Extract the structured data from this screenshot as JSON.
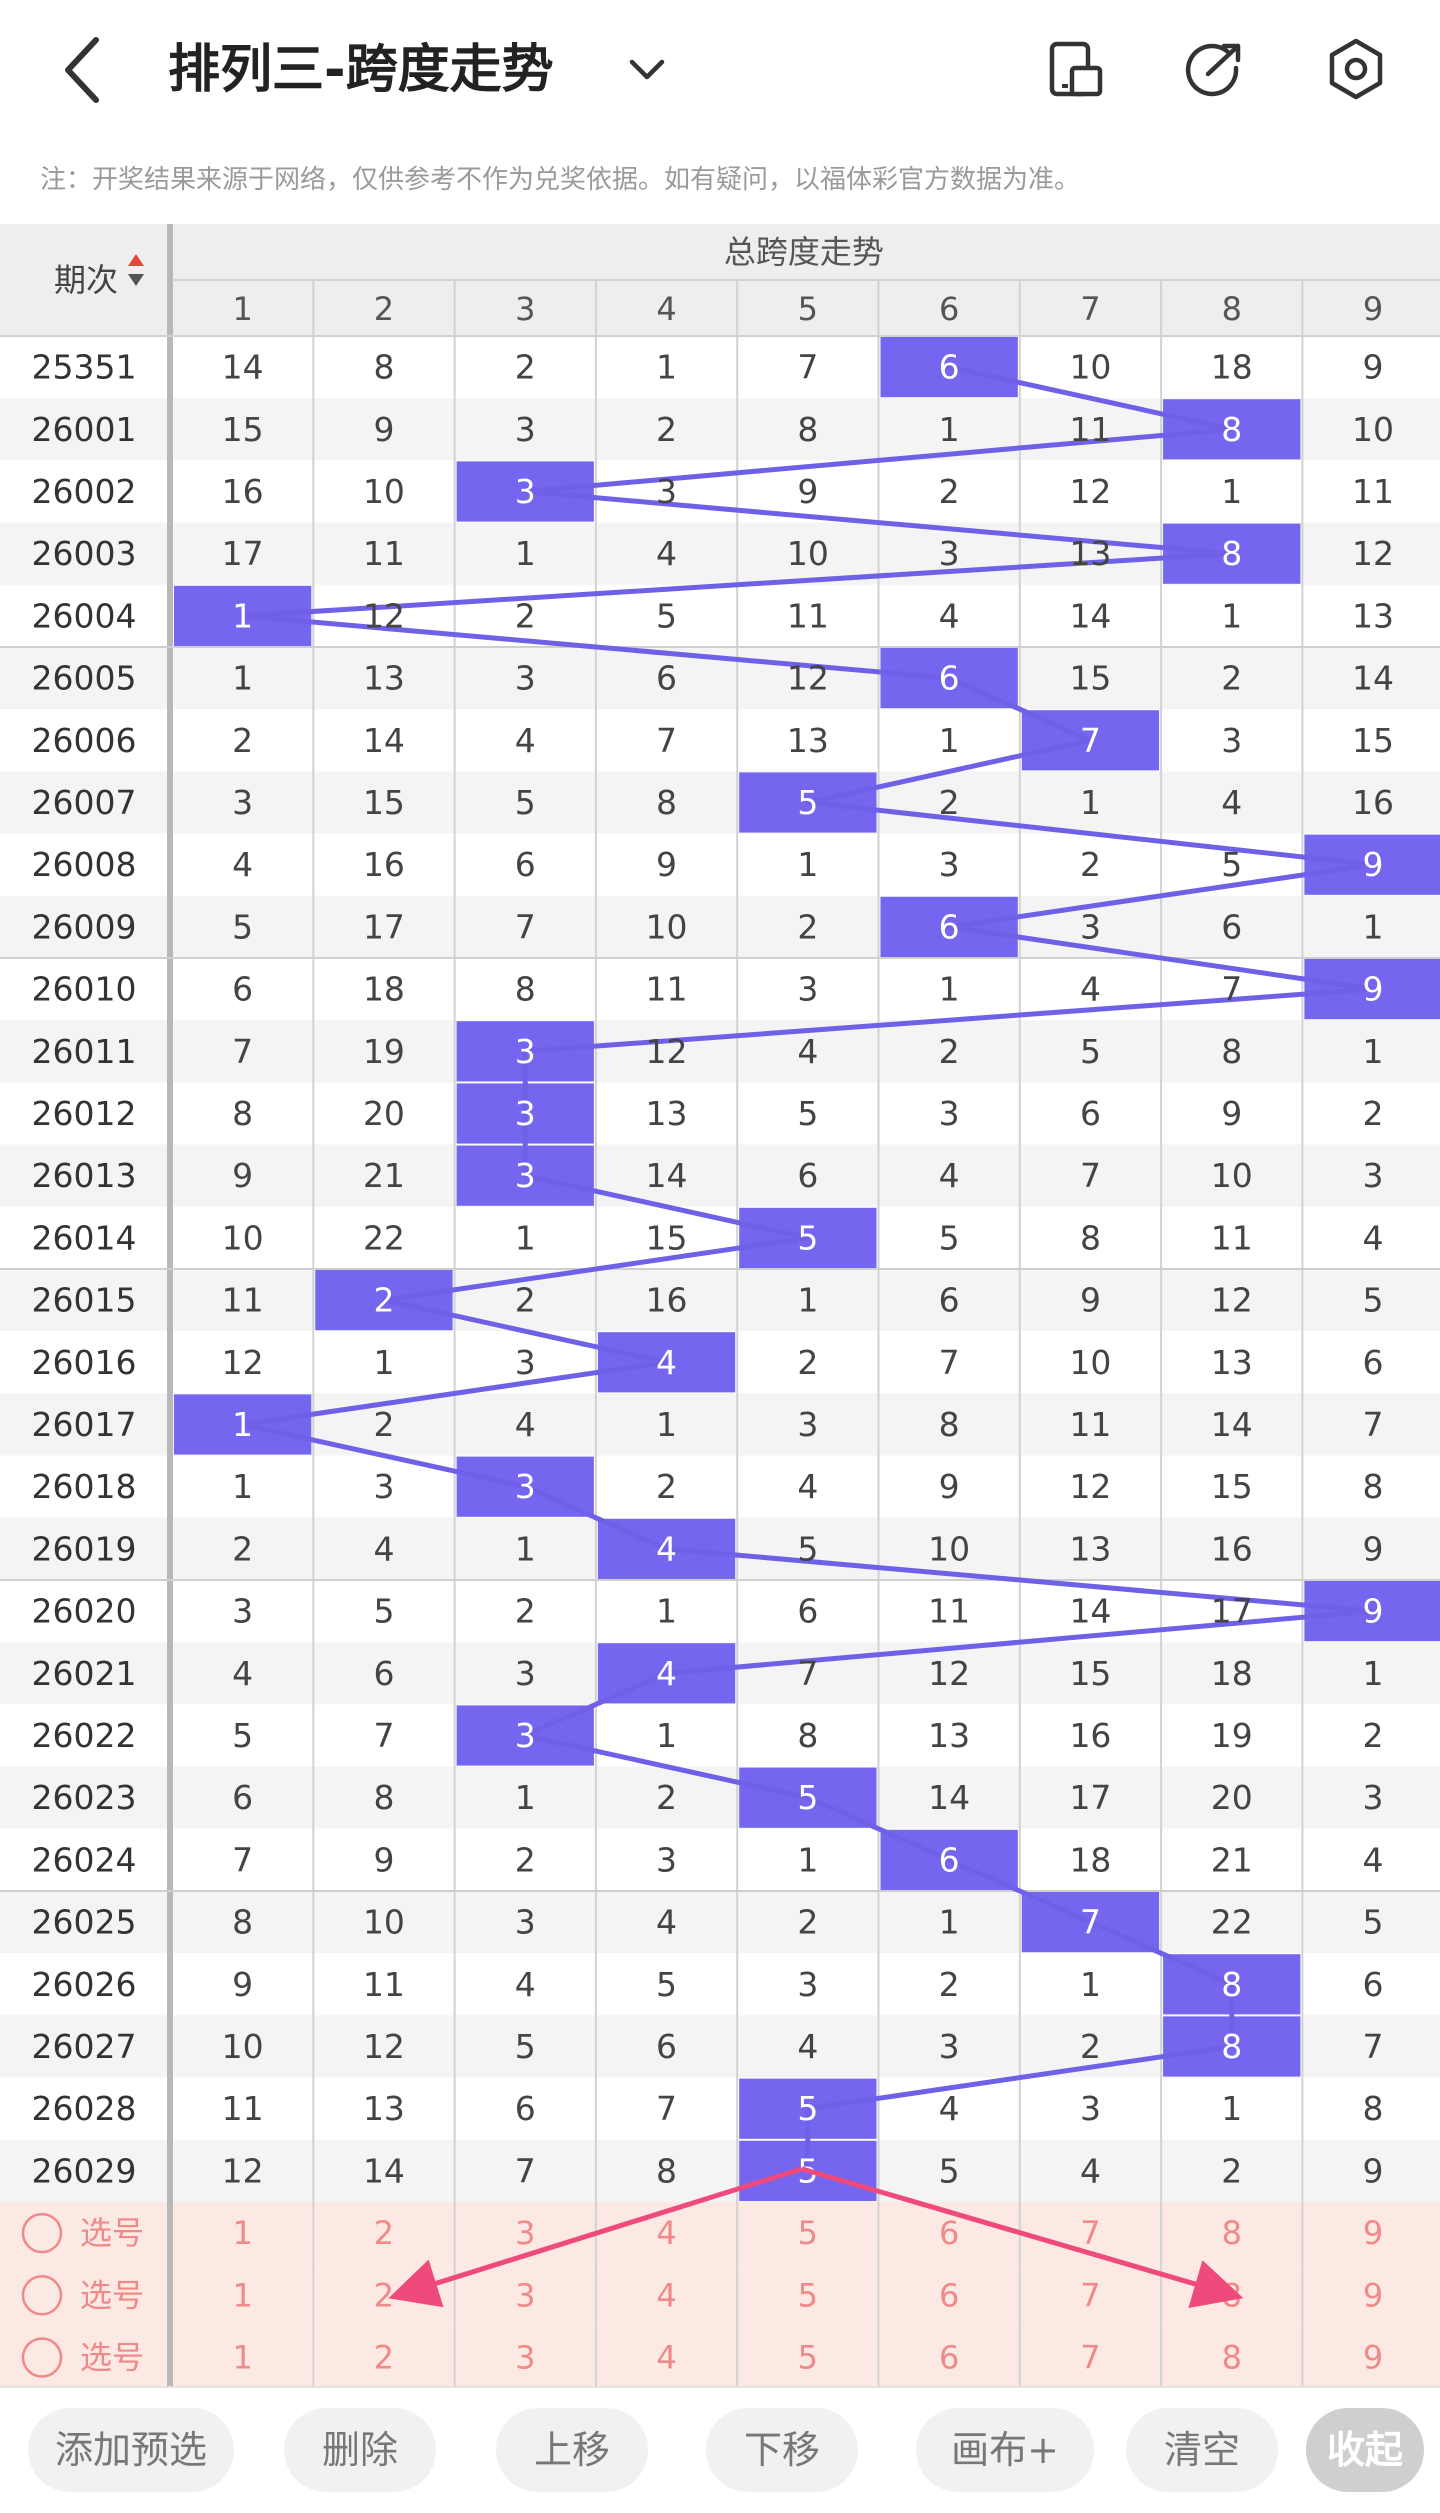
{
  "header": {
    "title": "排列三-跨度走势",
    "back_icon": "chevron-left-icon",
    "dropdown_icon": "chevron-down-icon",
    "actions": [
      {
        "name": "layout-toggle-icon"
      },
      {
        "name": "share-icon"
      },
      {
        "name": "settings-icon"
      }
    ]
  },
  "notice": "注：开奖结果来源于网络，仅供参考不作为兑奖依据。如有疑问，以福体彩官方数据为准。",
  "table": {
    "period_header": "期次",
    "group_header": "总跨度走势",
    "columns": [
      "1",
      "2",
      "3",
      "4",
      "5",
      "6",
      "7",
      "8",
      "9"
    ],
    "colors": {
      "highlight": "#7566f0",
      "line": "#6f60e8",
      "arrow": "#ee4a7b",
      "preselect_bg": "#fde9e4",
      "preselect_text": "#f08a8a"
    },
    "rows": [
      {
        "period": "25351",
        "cells": [
          "14",
          "8",
          "2",
          "1",
          "7",
          "6",
          "10",
          "18",
          "9"
        ],
        "hit": 6
      },
      {
        "period": "26001",
        "cells": [
          "15",
          "9",
          "3",
          "2",
          "8",
          "1",
          "11",
          "8",
          "10"
        ],
        "hit": 8
      },
      {
        "period": "26002",
        "cells": [
          "16",
          "10",
          "3",
          "3",
          "9",
          "2",
          "12",
          "1",
          "11"
        ],
        "hit": 3
      },
      {
        "period": "26003",
        "cells": [
          "17",
          "11",
          "1",
          "4",
          "10",
          "3",
          "13",
          "8",
          "12"
        ],
        "hit": 8
      },
      {
        "period": "26004",
        "cells": [
          "1",
          "12",
          "2",
          "5",
          "11",
          "4",
          "14",
          "1",
          "13"
        ],
        "hit": 1
      },
      {
        "period": "26005",
        "cells": [
          "1",
          "13",
          "3",
          "6",
          "12",
          "6",
          "15",
          "2",
          "14"
        ],
        "hit": 6
      },
      {
        "period": "26006",
        "cells": [
          "2",
          "14",
          "4",
          "7",
          "13",
          "1",
          "7",
          "3",
          "15"
        ],
        "hit": 7
      },
      {
        "period": "26007",
        "cells": [
          "3",
          "15",
          "5",
          "8",
          "5",
          "2",
          "1",
          "4",
          "16"
        ],
        "hit": 5
      },
      {
        "period": "26008",
        "cells": [
          "4",
          "16",
          "6",
          "9",
          "1",
          "3",
          "2",
          "5",
          "9"
        ],
        "hit": 9
      },
      {
        "period": "26009",
        "cells": [
          "5",
          "17",
          "7",
          "10",
          "2",
          "6",
          "3",
          "6",
          "1"
        ],
        "hit": 6
      },
      {
        "period": "26010",
        "cells": [
          "6",
          "18",
          "8",
          "11",
          "3",
          "1",
          "4",
          "7",
          "9"
        ],
        "hit": 9
      },
      {
        "period": "26011",
        "cells": [
          "7",
          "19",
          "3",
          "12",
          "4",
          "2",
          "5",
          "8",
          "1"
        ],
        "hit": 3
      },
      {
        "period": "26012",
        "cells": [
          "8",
          "20",
          "3",
          "13",
          "5",
          "3",
          "6",
          "9",
          "2"
        ],
        "hit": 3
      },
      {
        "period": "26013",
        "cells": [
          "9",
          "21",
          "3",
          "14",
          "6",
          "4",
          "7",
          "10",
          "3"
        ],
        "hit": 3
      },
      {
        "period": "26014",
        "cells": [
          "10",
          "22",
          "1",
          "15",
          "5",
          "5",
          "8",
          "11",
          "4"
        ],
        "hit": 5
      },
      {
        "period": "26015",
        "cells": [
          "11",
          "2",
          "2",
          "16",
          "1",
          "6",
          "9",
          "12",
          "5"
        ],
        "hit": 2
      },
      {
        "period": "26016",
        "cells": [
          "12",
          "1",
          "3",
          "4",
          "2",
          "7",
          "10",
          "13",
          "6"
        ],
        "hit": 4
      },
      {
        "period": "26017",
        "cells": [
          "1",
          "2",
          "4",
          "1",
          "3",
          "8",
          "11",
          "14",
          "7"
        ],
        "hit": 1
      },
      {
        "period": "26018",
        "cells": [
          "1",
          "3",
          "3",
          "2",
          "4",
          "9",
          "12",
          "15",
          "8"
        ],
        "hit": 3
      },
      {
        "period": "26019",
        "cells": [
          "2",
          "4",
          "1",
          "4",
          "5",
          "10",
          "13",
          "16",
          "9"
        ],
        "hit": 4
      },
      {
        "period": "26020",
        "cells": [
          "3",
          "5",
          "2",
          "1",
          "6",
          "11",
          "14",
          "17",
          "9"
        ],
        "hit": 9
      },
      {
        "period": "26021",
        "cells": [
          "4",
          "6",
          "3",
          "4",
          "7",
          "12",
          "15",
          "18",
          "1"
        ],
        "hit": 4
      },
      {
        "period": "26022",
        "cells": [
          "5",
          "7",
          "3",
          "1",
          "8",
          "13",
          "16",
          "19",
          "2"
        ],
        "hit": 3
      },
      {
        "period": "26023",
        "cells": [
          "6",
          "8",
          "1",
          "2",
          "5",
          "14",
          "17",
          "20",
          "3"
        ],
        "hit": 5
      },
      {
        "period": "26024",
        "cells": [
          "7",
          "9",
          "2",
          "3",
          "1",
          "6",
          "18",
          "21",
          "4"
        ],
        "hit": 6
      },
      {
        "period": "26025",
        "cells": [
          "8",
          "10",
          "3",
          "4",
          "2",
          "1",
          "7",
          "22",
          "5"
        ],
        "hit": 7
      },
      {
        "period": "26026",
        "cells": [
          "9",
          "11",
          "4",
          "5",
          "3",
          "2",
          "1",
          "8",
          "6"
        ],
        "hit": 8
      },
      {
        "period": "26027",
        "cells": [
          "10",
          "12",
          "5",
          "6",
          "4",
          "3",
          "2",
          "8",
          "7"
        ],
        "hit": 8
      },
      {
        "period": "26028",
        "cells": [
          "11",
          "13",
          "6",
          "7",
          "5",
          "4",
          "3",
          "1",
          "8"
        ],
        "hit": 5
      },
      {
        "period": "26029",
        "cells": [
          "12",
          "14",
          "7",
          "8",
          "5",
          "5",
          "4",
          "2",
          "9"
        ],
        "hit": 5
      }
    ],
    "preselect_rows": [
      {
        "label": "选号",
        "cells": [
          "1",
          "2",
          "3",
          "4",
          "5",
          "6",
          "7",
          "8",
          "9"
        ]
      },
      {
        "label": "选号",
        "cells": [
          "1",
          "2",
          "3",
          "4",
          "5",
          "6",
          "7",
          "8",
          "9"
        ]
      },
      {
        "label": "选号",
        "cells": [
          "1",
          "2",
          "3",
          "4",
          "5",
          "6",
          "7",
          "8",
          "9"
        ]
      }
    ]
  },
  "bottom_bar": {
    "buttons": [
      {
        "label": "添加预选",
        "name": "add-preselect-button"
      },
      {
        "label": "删除",
        "name": "delete-button"
      },
      {
        "label": "上移",
        "name": "move-up-button"
      },
      {
        "label": "下移",
        "name": "move-down-button"
      },
      {
        "label": "画布+",
        "name": "canvas-button"
      },
      {
        "label": "清空",
        "name": "clear-button"
      },
      {
        "label": "收起",
        "name": "collapse-button"
      }
    ]
  }
}
